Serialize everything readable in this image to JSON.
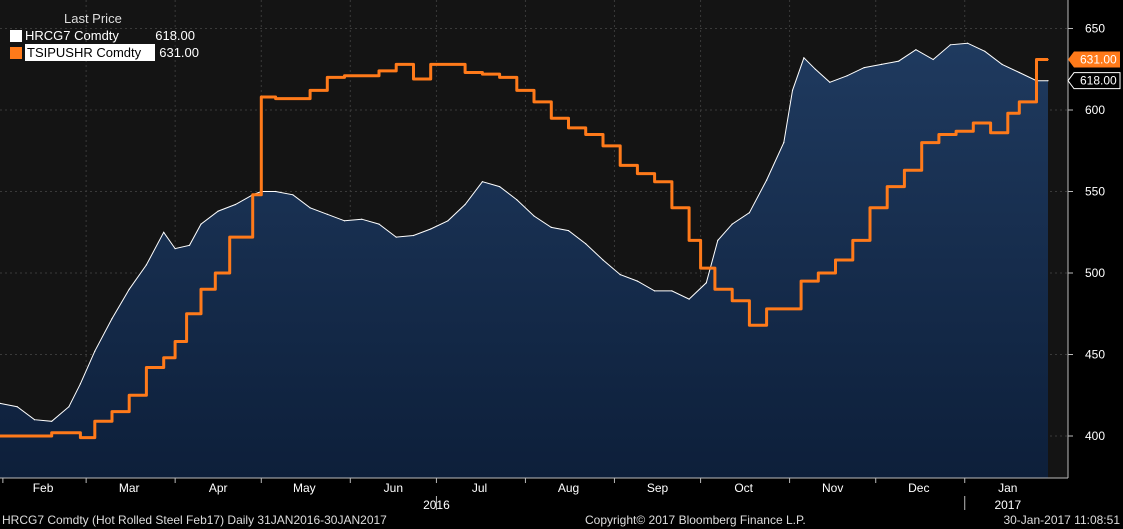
{
  "legend": {
    "title": "Last Price",
    "items": [
      {
        "name": "HRCG7 Comdty",
        "value": "618.00"
      },
      {
        "name": "TSIPUSHR Comdty",
        "value": "631.00"
      }
    ]
  },
  "footer": {
    "left": "HRCG7 Comdty (Hot Rolled Steel  Feb17)  Daily 31JAN2016-30JAN2017",
    "center": "Copyright© 2017 Bloomberg Finance L.P.",
    "right": "30-Jan-2017 11:08:51"
  },
  "colors": {
    "area_top": "#1f3a5f",
    "area_bottom": "#0d1f3a",
    "hrc_line": "#ffffff",
    "tsi_line": "#ff7a1a",
    "background": "#000000"
  },
  "chart_data": {
    "type": "line",
    "x_axis": {
      "labels": [
        "Feb",
        "Mar",
        "Apr",
        "May",
        "Jun",
        "Jul",
        "Aug",
        "Sep",
        "Oct",
        "Nov",
        "Dec",
        "Jan"
      ],
      "year_labels": [
        "2016",
        "2017"
      ]
    },
    "y_axis": {
      "ticks": [
        400,
        450,
        500,
        550,
        600,
        650
      ],
      "range": [
        380,
        660
      ],
      "position": "right"
    },
    "series": [
      {
        "name": "HRCG7 Comdty",
        "style": "area",
        "last_value": "618.00",
        "x": [
          "2016-01-31",
          "2016-02-06",
          "2016-02-12",
          "2016-02-18",
          "2016-02-24",
          "2016-02-28",
          "2016-03-04",
          "2016-03-10",
          "2016-03-16",
          "2016-03-22",
          "2016-03-28",
          "2016-04-01",
          "2016-04-06",
          "2016-04-10",
          "2016-04-16",
          "2016-04-22",
          "2016-04-28",
          "2016-05-01",
          "2016-05-06",
          "2016-05-12",
          "2016-05-18",
          "2016-05-24",
          "2016-05-30",
          "2016-06-05",
          "2016-06-11",
          "2016-06-17",
          "2016-06-23",
          "2016-06-29",
          "2016-07-05",
          "2016-07-11",
          "2016-07-17",
          "2016-07-23",
          "2016-07-29",
          "2016-08-04",
          "2016-08-10",
          "2016-08-16",
          "2016-08-22",
          "2016-08-28",
          "2016-09-03",
          "2016-09-09",
          "2016-09-15",
          "2016-09-21",
          "2016-09-27",
          "2016-10-03",
          "2016-10-07",
          "2016-10-12",
          "2016-10-18",
          "2016-10-24",
          "2016-10-30",
          "2016-11-02",
          "2016-11-06",
          "2016-11-10",
          "2016-11-15",
          "2016-11-21",
          "2016-11-27",
          "2016-12-03",
          "2016-12-09",
          "2016-12-15",
          "2016-12-21",
          "2016-12-27",
          "2017-01-02",
          "2017-01-08",
          "2017-01-14",
          "2017-01-20",
          "2017-01-26",
          "2017-01-30"
        ],
        "y": [
          420,
          418,
          410,
          409,
          418,
          432,
          452,
          472,
          490,
          505,
          525,
          515,
          517,
          530,
          538,
          542,
          548,
          550,
          550,
          548,
          540,
          536,
          532,
          533,
          530,
          522,
          523,
          527,
          532,
          542,
          556,
          553,
          545,
          535,
          528,
          526,
          518,
          508,
          499,
          495,
          489,
          489,
          484,
          494,
          520,
          530,
          537,
          557,
          580,
          612,
          632,
          625,
          617,
          621,
          626,
          628,
          630,
          637,
          631,
          640,
          641,
          636,
          628,
          623,
          618,
          618
        ]
      },
      {
        "name": "TSIPUSHR Comdty",
        "style": "line",
        "last_value": "631.00",
        "x": [
          "2016-01-31",
          "2016-02-06",
          "2016-02-12",
          "2016-02-18",
          "2016-02-24",
          "2016-02-28",
          "2016-03-04",
          "2016-03-10",
          "2016-03-16",
          "2016-03-22",
          "2016-03-28",
          "2016-04-01",
          "2016-04-05",
          "2016-04-10",
          "2016-04-15",
          "2016-04-20",
          "2016-04-25",
          "2016-04-28",
          "2016-05-01",
          "2016-05-06",
          "2016-05-12",
          "2016-05-18",
          "2016-05-24",
          "2016-05-30",
          "2016-06-05",
          "2016-06-11",
          "2016-06-17",
          "2016-06-23",
          "2016-06-29",
          "2016-07-05",
          "2016-07-11",
          "2016-07-17",
          "2016-07-23",
          "2016-07-29",
          "2016-08-04",
          "2016-08-10",
          "2016-08-16",
          "2016-08-22",
          "2016-08-28",
          "2016-09-03",
          "2016-09-09",
          "2016-09-15",
          "2016-09-21",
          "2016-09-27",
          "2016-10-01",
          "2016-10-06",
          "2016-10-12",
          "2016-10-18",
          "2016-10-24",
          "2016-10-30",
          "2016-11-05",
          "2016-11-11",
          "2016-11-17",
          "2016-11-23",
          "2016-11-29",
          "2016-12-05",
          "2016-12-11",
          "2016-12-17",
          "2016-12-23",
          "2016-12-29",
          "2017-01-04",
          "2017-01-10",
          "2017-01-16",
          "2017-01-20",
          "2017-01-23",
          "2017-01-26",
          "2017-01-30"
        ],
        "y": [
          400,
          400,
          400,
          402,
          402,
          399,
          409,
          415,
          425,
          442,
          448,
          458,
          475,
          490,
          500,
          522,
          522,
          548,
          608,
          607,
          607,
          612,
          620,
          621,
          621,
          624,
          628,
          619,
          628,
          628,
          623,
          622,
          620,
          612,
          605,
          595,
          589,
          585,
          578,
          566,
          561,
          556,
          540,
          520,
          503,
          490,
          483,
          468,
          478,
          478,
          495,
          500,
          508,
          520,
          540,
          553,
          563,
          580,
          585,
          587,
          592,
          586,
          598,
          605,
          605,
          631,
          631
        ]
      }
    ]
  }
}
